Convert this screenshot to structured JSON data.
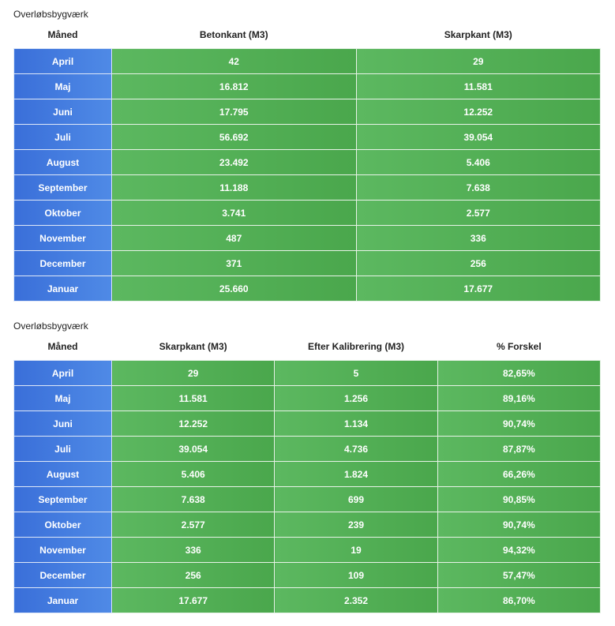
{
  "tables": [
    {
      "title": "Overløbsbygværk",
      "header": [
        "Måned",
        "Betonkant (M3)",
        "Skarpkant (M3)"
      ],
      "rows": [
        [
          "April",
          "42",
          "29"
        ],
        [
          "Maj",
          "16.812",
          "11.581"
        ],
        [
          "Juni",
          "17.795",
          "12.252"
        ],
        [
          "Juli",
          "56.692",
          "39.054"
        ],
        [
          "August",
          "23.492",
          "5.406"
        ],
        [
          "September",
          "11.188",
          "7.638"
        ],
        [
          "Oktober",
          "3.741",
          "2.577"
        ],
        [
          "November",
          "487",
          "336"
        ],
        [
          "December",
          "371",
          "256"
        ],
        [
          "Januar",
          "25.660",
          "17.677"
        ]
      ]
    },
    {
      "title": "Overløbsbygværk",
      "header": [
        "Måned",
        "Skarpkant (M3)",
        "Efter Kalibrering (M3)",
        "% Forskel"
      ],
      "rows": [
        [
          "April",
          "29",
          "5",
          "82,65%"
        ],
        [
          "Maj",
          "11.581",
          "1.256",
          "89,16%"
        ],
        [
          "Juni",
          "12.252",
          "1.134",
          "90,74%"
        ],
        [
          "Juli",
          "39.054",
          "4.736",
          "87,87%"
        ],
        [
          "August",
          "5.406",
          "1.824",
          "66,26%"
        ],
        [
          "September",
          "7.638",
          "699",
          "90,85%"
        ],
        [
          "Oktober",
          "2.577",
          "239",
          "90,74%"
        ],
        [
          "November",
          "336",
          "19",
          "94,32%"
        ],
        [
          "December",
          "256",
          "109",
          "57,47%"
        ],
        [
          "Januar",
          "17.677",
          "2.352",
          "86,70%"
        ]
      ]
    }
  ]
}
